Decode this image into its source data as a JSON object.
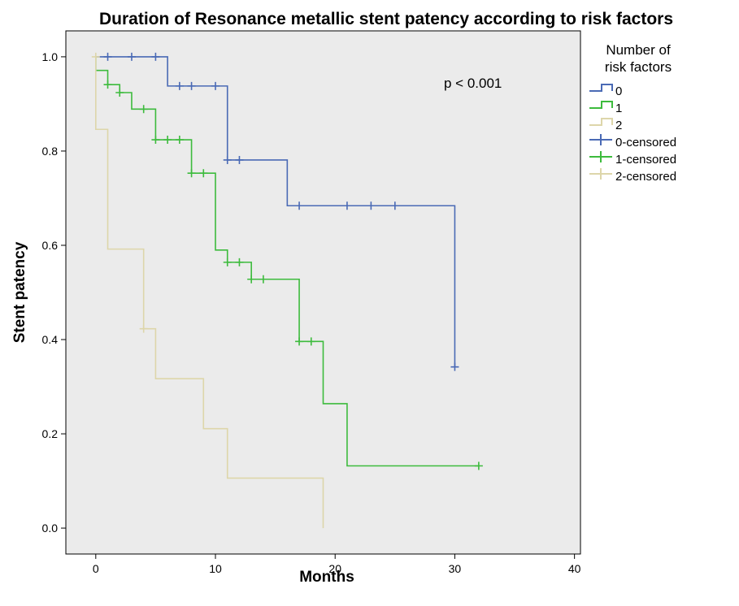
{
  "chart_data": {
    "type": "line",
    "subtype": "kaplan-meier-step",
    "title": "Duration of Resonance metallic stent patency according to risk factors",
    "xlabel": "Months",
    "ylabel": "Stent patency",
    "xlim": [
      -2.5,
      40.5
    ],
    "ylim": [
      -0.055,
      1.055
    ],
    "x_ticks": [
      0,
      10,
      20,
      30,
      40
    ],
    "x_tick_labels": [
      "0",
      "10",
      "20",
      "30",
      "40"
    ],
    "y_ticks": [
      0.0,
      0.2,
      0.4,
      0.6,
      0.8,
      1.0
    ],
    "y_tick_labels": [
      "0.0",
      "0.2",
      "0.4",
      "0.6",
      "0.8",
      "1.0"
    ],
    "grid": false,
    "background": "#ebebeb",
    "legend": {
      "title": "Number of risk factors",
      "title_lines": [
        "Number of",
        "risk factors"
      ],
      "placement": "right-outside",
      "entries": [
        {
          "label": "0",
          "color": "#4a6ab5",
          "kind": "line"
        },
        {
          "label": "1",
          "color": "#3dbb3d",
          "kind": "line"
        },
        {
          "label": "2",
          "color": "#ddd6aa",
          "kind": "line"
        },
        {
          "label": "0-censored",
          "color": "#4a6ab5",
          "kind": "censor"
        },
        {
          "label": "1-censored",
          "color": "#3dbb3d",
          "kind": "censor"
        },
        {
          "label": "2-censored",
          "color": "#ddd6aa",
          "kind": "censor"
        }
      ]
    },
    "annotation": "p < 0.001",
    "series": [
      {
        "name": "0",
        "color": "#4a6ab5",
        "steps": [
          [
            0,
            1.0
          ],
          [
            6,
            0.938
          ],
          [
            11,
            0.781
          ],
          [
            16,
            0.684
          ],
          [
            30,
            0.342
          ]
        ],
        "censored": [
          [
            1,
            1.0
          ],
          [
            3,
            1.0
          ],
          [
            5,
            1.0
          ],
          [
            7,
            0.938
          ],
          [
            8,
            0.938
          ],
          [
            10,
            0.938
          ],
          [
            11,
            0.781
          ],
          [
            12,
            0.781
          ],
          [
            17,
            0.684
          ],
          [
            21,
            0.684
          ],
          [
            23,
            0.684
          ],
          [
            25,
            0.684
          ],
          [
            30,
            0.342
          ]
        ]
      },
      {
        "name": "1",
        "color": "#3dbb3d",
        "steps": [
          [
            0,
            1.0
          ],
          [
            0,
            0.971
          ],
          [
            1,
            0.941
          ],
          [
            2,
            0.924
          ],
          [
            3,
            0.889
          ],
          [
            5,
            0.824
          ],
          [
            8,
            0.753
          ],
          [
            10,
            0.59
          ],
          [
            11,
            0.564
          ],
          [
            13,
            0.528
          ],
          [
            17,
            0.396
          ],
          [
            19,
            0.264
          ],
          [
            21,
            0.132
          ],
          [
            32,
            0.132
          ]
        ],
        "censored": [
          [
            1,
            0.941
          ],
          [
            2,
            0.924
          ],
          [
            4,
            0.889
          ],
          [
            5,
            0.824
          ],
          [
            6,
            0.824
          ],
          [
            7,
            0.824
          ],
          [
            8,
            0.753
          ],
          [
            9,
            0.753
          ],
          [
            11,
            0.564
          ],
          [
            12,
            0.564
          ],
          [
            13,
            0.528
          ],
          [
            14,
            0.528
          ],
          [
            17,
            0.396
          ],
          [
            18,
            0.396
          ],
          [
            32,
            0.132
          ]
        ]
      },
      {
        "name": "2",
        "color": "#ddd6aa",
        "steps": [
          [
            0,
            1.0
          ],
          [
            0,
            0.846
          ],
          [
            1,
            0.592
          ],
          [
            4,
            0.423
          ],
          [
            5,
            0.317
          ],
          [
            9,
            0.211
          ],
          [
            11,
            0.106
          ],
          [
            19,
            0.0
          ]
        ],
        "censored": [
          [
            0,
            1.0
          ],
          [
            4,
            0.423
          ]
        ]
      }
    ]
  }
}
